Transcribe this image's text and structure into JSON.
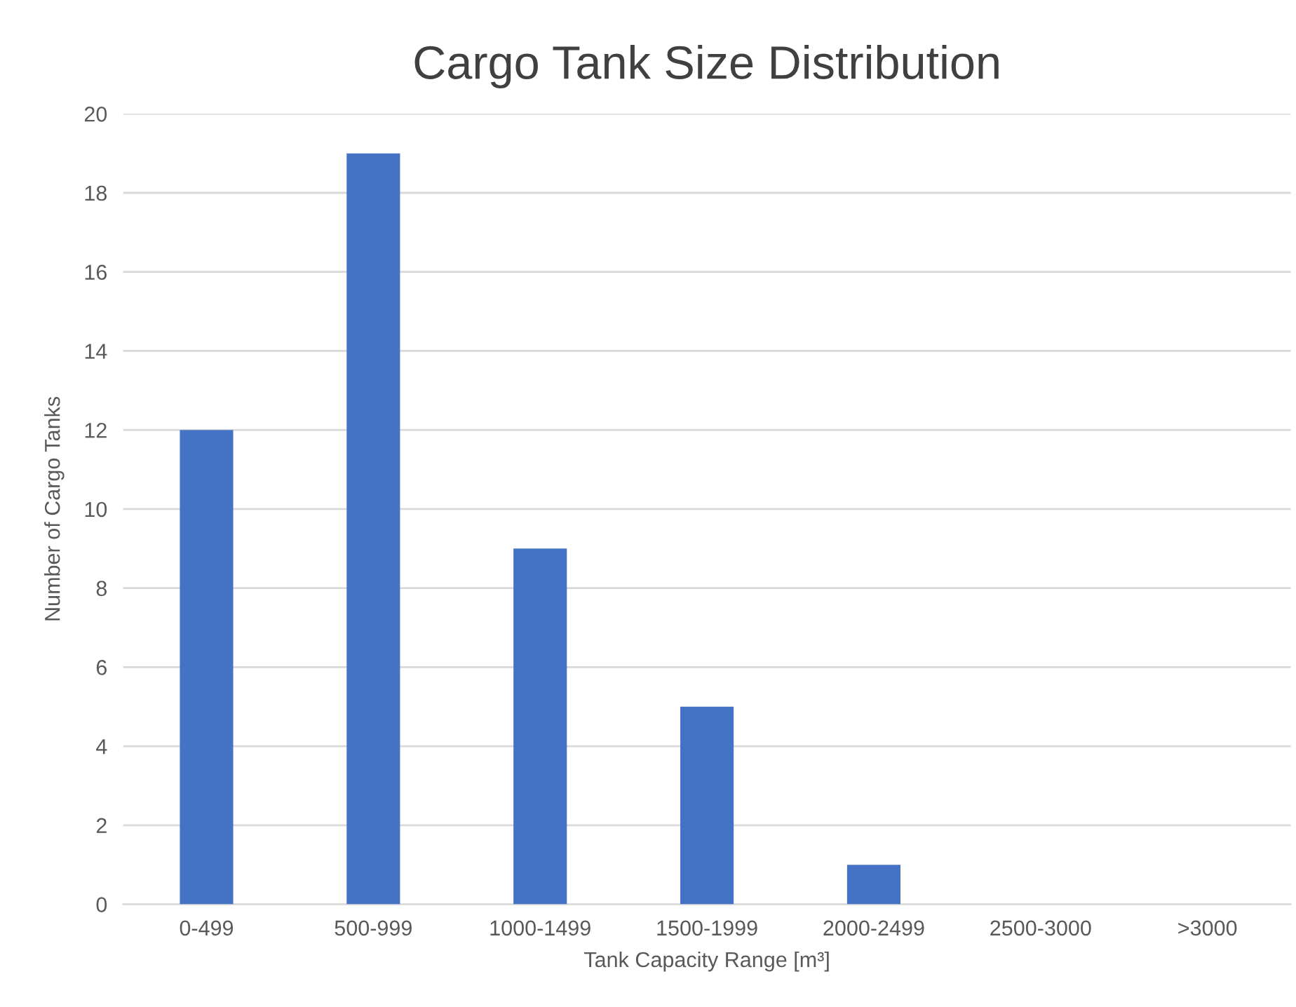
{
  "chart_data": {
    "type": "bar",
    "title": "Cargo Tank Size Distribution",
    "xlabel": "Tank Capacity Range [m³]",
    "ylabel": "Number of Cargo Tanks",
    "categories": [
      "0-499",
      "500-999",
      "1000-1499",
      "1500-1999",
      "2000-2499",
      "2500-3000",
      ">3000"
    ],
    "series": [
      {
        "color": "#4472c4",
        "values": [
          12,
          19,
          9,
          5,
          1,
          0,
          0
        ]
      }
    ],
    "ylim": [
      0,
      20
    ],
    "yticks": [
      0,
      2,
      4,
      6,
      8,
      10,
      12,
      14,
      16,
      18,
      20
    ],
    "grid": "y",
    "legend": false
  }
}
